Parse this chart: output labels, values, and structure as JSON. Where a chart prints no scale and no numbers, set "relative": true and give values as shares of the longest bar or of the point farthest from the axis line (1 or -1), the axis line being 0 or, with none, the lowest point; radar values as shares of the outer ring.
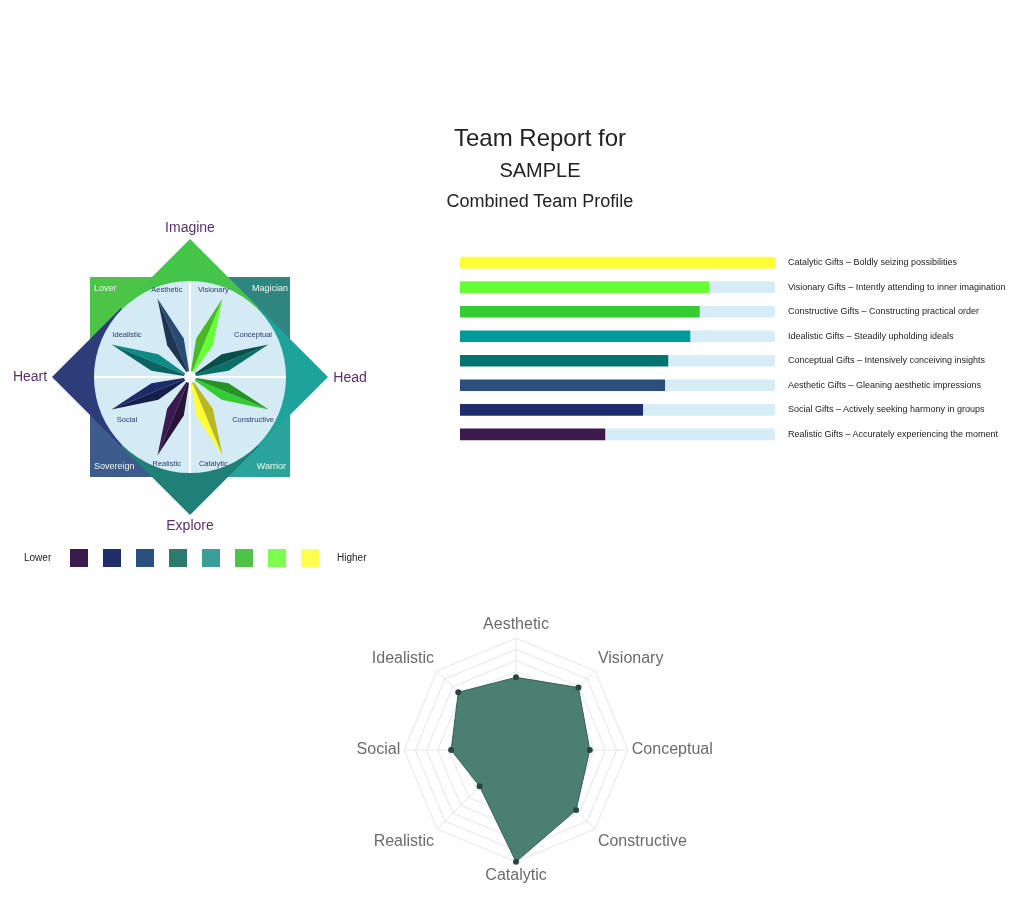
{
  "chart_data": [
    {
      "type": "other",
      "title": "Team Report for",
      "subtitle": "SAMPLE",
      "annotations": [
        "Combined Team Profile"
      ]
    },
    {
      "type": "other",
      "categories": [
        "Visionary",
        "Conceptual",
        "Constructive",
        "Catalytic",
        "Realistic",
        "Social",
        "Idealistic",
        "Aesthetic"
      ],
      "annotations": [
        "Imagine",
        "Head",
        "Explore",
        "Heart",
        "Lover",
        "Magician",
        "Warrior",
        "Sovereign",
        "Lower",
        "Higher"
      ]
    },
    {
      "type": "bar",
      "orientation": "horizontal",
      "stacked": true,
      "relative": true,
      "categories": [
        "Catalytic Gifts – Boldly seizing possibilities",
        "Visionary Gifts – Intently attending to inner imagination",
        "Constructive Gifts – Constructing practical order",
        "Idealistic Gifts – Steadily upholding ideals",
        "Conceptual Gifts – Intensively conceiving insights",
        "Aesthetic Gifts – Gleaning aesthetic impressions",
        "Social Gifts – Actively seeking harmony in groups",
        "Realistic Gifts – Accurately experiencing the moment"
      ],
      "series": [
        {
          "colors": [
            "#ffff33",
            "#66ff33",
            "#33cc33",
            "#009a99",
            "#007370",
            "#2a4f7f",
            "#1f2d6e",
            "#3d1a4e"
          ],
          "values": [
            1,
            0.79,
            0.76,
            0.73,
            0.66,
            0.65,
            0.58,
            0.46
          ]
        },
        {
          "color": "#d6ecf7",
          "values": [
            null,
            0.21,
            0.24,
            0.27,
            0.34,
            0.35,
            0.42,
            0.54
          ]
        }
      ]
    },
    {
      "type": "radar",
      "relative": true,
      "grid": true,
      "marker": "circle",
      "categories": [
        "Aesthetic",
        "Visionary",
        "Conceptual",
        "Constructive",
        "Catalytic",
        "Realistic",
        "Social",
        "Idealistic"
      ],
      "series": [
        {
          "color": "#4b7f72",
          "values": [
            0.65,
            0.79,
            0.66,
            0.76,
            1,
            0.46,
            0.58,
            0.73
          ]
        }
      ]
    }
  ]
}
